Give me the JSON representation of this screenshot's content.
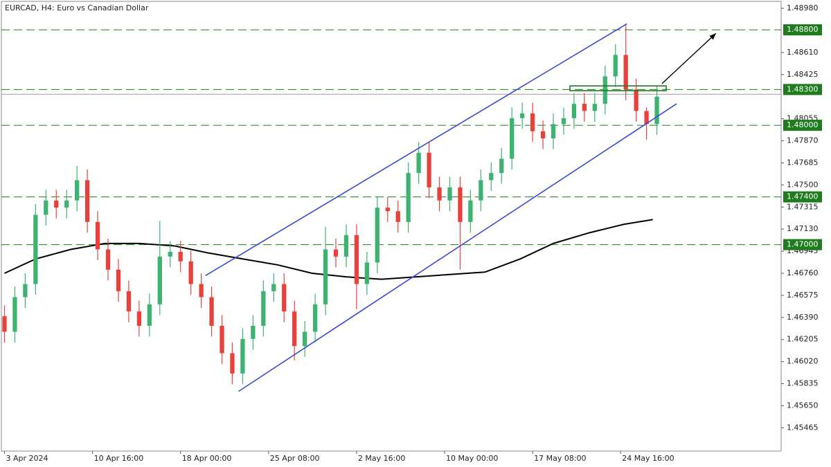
{
  "chart_data": {
    "type": "candlestick",
    "title": "EURCAD, H4:  Euro vs Canadian Dollar",
    "xlim": [
      -0.3,
      75
    ],
    "xticks": [
      {
        "value": 0,
        "label": "3 Apr 2024"
      },
      {
        "value": 8.5,
        "label": "10 Apr 16:00"
      },
      {
        "value": 17,
        "label": "18 Apr 00:00"
      },
      {
        "value": 25.5,
        "label": "25 Apr 08:00"
      },
      {
        "value": 34,
        "label": "2 May 16:00"
      },
      {
        "value": 42.5,
        "label": "10 May 00:00"
      },
      {
        "value": 51,
        "label": "17 May 08:00"
      },
      {
        "value": 59.5,
        "label": "24 May 16:00"
      }
    ],
    "ylim": [
      1.4527,
      1.4905
    ],
    "yticks": [
      {
        "value": 1.4898,
        "label": "1.48980"
      },
      {
        "value": 1.4861,
        "label": "1.48610"
      },
      {
        "value": 1.48425,
        "label": "1.48425"
      },
      {
        "value": 1.48055,
        "label": "1.48055"
      },
      {
        "value": 1.4787,
        "label": "1.47870"
      },
      {
        "value": 1.47685,
        "label": "1.47685"
      },
      {
        "value": 1.475,
        "label": "1.47500"
      },
      {
        "value": 1.47315,
        "label": "1.47315"
      },
      {
        "value": 1.4713,
        "label": "1.47130"
      },
      {
        "value": 1.46945,
        "label": "1.46945"
      },
      {
        "value": 1.4676,
        "label": "1.46760"
      },
      {
        "value": 1.46575,
        "label": "1.46575"
      },
      {
        "value": 1.4639,
        "label": "1.46390"
      },
      {
        "value": 1.46205,
        "label": "1.46205"
      },
      {
        "value": 1.4602,
        "label": "1.46020"
      },
      {
        "value": 1.45835,
        "label": "1.45835"
      },
      {
        "value": 1.4565,
        "label": "1.45650"
      },
      {
        "value": 1.45465,
        "label": "1.45465"
      }
    ],
    "up_color": "#3cb371",
    "down_color": "#e8413c",
    "open": [
      1.464,
      1.4627,
      1.4656,
      1.4667,
      1.4725,
      1.4737,
      1.4731,
      1.4737,
      1.4754,
      1.4719,
      1.4696,
      1.4679,
      1.4661,
      1.4644,
      1.4632,
      1.465,
      1.469,
      1.4694,
      1.4686,
      1.4667,
      1.4656,
      1.4632,
      1.4609,
      1.4592,
      1.4621,
      1.4632,
      1.4661,
      1.4667,
      1.4644,
      1.4615,
      1.4627,
      1.465,
      1.4696,
      1.469,
      1.4708,
      1.4667,
      1.4685,
      1.4731,
      1.4728,
      1.4719,
      1.476,
      1.4777,
      1.4748,
      1.4737,
      1.4748,
      1.4719,
      1.4737,
      1.4754,
      1.476,
      1.4772,
      1.4806,
      1.481,
      1.4795,
      1.4789,
      1.4801,
      1.4806,
      1.4818,
      1.4812,
      1.4818,
      1.4841,
      1.4859,
      1.483,
      1.4812,
      1.4801
    ],
    "high": [
      1.4649,
      1.4665,
      1.4676,
      1.4734,
      1.4746,
      1.4746,
      1.4746,
      1.4766,
      1.4763,
      1.4728,
      1.4705,
      1.4688,
      1.467,
      1.4653,
      1.4659,
      1.472,
      1.4703,
      1.4703,
      1.4695,
      1.4676,
      1.4665,
      1.4641,
      1.4618,
      1.463,
      1.4641,
      1.467,
      1.4676,
      1.4676,
      1.4653,
      1.4636,
      1.4659,
      1.4715,
      1.4705,
      1.4717,
      1.4717,
      1.4694,
      1.474,
      1.474,
      1.4737,
      1.4769,
      1.4786,
      1.4786,
      1.4757,
      1.4757,
      1.4757,
      1.4746,
      1.4763,
      1.4769,
      1.4781,
      1.4815,
      1.4819,
      1.4819,
      1.4804,
      1.481,
      1.4815,
      1.4827,
      1.4827,
      1.4827,
      1.485,
      1.4868,
      1.4884,
      1.4839,
      1.4815,
      1.4833
    ],
    "low": [
      1.4618,
      1.4618,
      1.4647,
      1.4658,
      1.4716,
      1.4722,
      1.4722,
      1.4728,
      1.471,
      1.4687,
      1.467,
      1.4652,
      1.4635,
      1.4623,
      1.4623,
      1.4641,
      1.4681,
      1.4677,
      1.4658,
      1.4647,
      1.4623,
      1.46,
      1.4583,
      1.4583,
      1.4612,
      1.4623,
      1.4652,
      1.4635,
      1.4603,
      1.4606,
      1.4618,
      1.4641,
      1.4681,
      1.4681,
      1.4646,
      1.4658,
      1.4676,
      1.4719,
      1.471,
      1.471,
      1.4751,
      1.4739,
      1.4728,
      1.4728,
      1.4679,
      1.471,
      1.4728,
      1.4745,
      1.4751,
      1.4763,
      1.4797,
      1.4786,
      1.478,
      1.478,
      1.4792,
      1.4797,
      1.4803,
      1.4803,
      1.4809,
      1.4832,
      1.4821,
      1.4803,
      1.4788,
      1.4792
    ],
    "close": [
      1.4627,
      1.4656,
      1.4667,
      1.4725,
      1.4737,
      1.4731,
      1.4737,
      1.4754,
      1.4719,
      1.4696,
      1.4679,
      1.4661,
      1.4644,
      1.4632,
      1.465,
      1.469,
      1.4694,
      1.4686,
      1.4667,
      1.4656,
      1.4632,
      1.4609,
      1.4592,
      1.4621,
      1.4632,
      1.4661,
      1.4667,
      1.4644,
      1.4615,
      1.4627,
      1.465,
      1.4696,
      1.469,
      1.4708,
      1.4667,
      1.4685,
      1.4731,
      1.4728,
      1.4719,
      1.476,
      1.4777,
      1.4748,
      1.4737,
      1.4748,
      1.4719,
      1.4737,
      1.4754,
      1.476,
      1.4772,
      1.4806,
      1.481,
      1.4795,
      1.4789,
      1.4801,
      1.4806,
      1.4818,
      1.4812,
      1.4818,
      1.4841,
      1.4859,
      1.483,
      1.4812,
      1.4801,
      1.4824
    ],
    "moving_average": {
      "color": "#000000",
      "x": [
        0,
        3,
        6.4,
        9.7,
        13,
        16.4,
        19.7,
        23,
        26.4,
        29.7,
        33,
        36.4,
        39.8,
        43,
        46.4,
        49.8,
        53,
        56.5,
        59.8,
        62.6
      ],
      "values": [
        1.4676,
        1.4688,
        1.4696,
        1.4701,
        1.4701,
        1.4699,
        1.4693,
        1.4688,
        1.4683,
        1.4676,
        1.4673,
        1.4671,
        1.4673,
        1.4675,
        1.4677,
        1.4688,
        1.4701,
        1.471,
        1.4717,
        1.4721
      ]
    },
    "levels_color": "#1e7b1e",
    "levels": [
      {
        "value": 1.488,
        "label": "1.48800"
      },
      {
        "value": 1.483,
        "label": "1.48300"
      },
      {
        "value": 1.48,
        "label": "1.48000"
      },
      {
        "value": 1.474,
        "label": "1.47400"
      },
      {
        "value": 1.47,
        "label": "1.47000"
      }
    ],
    "price_line": 1.4826,
    "channel_color": "#3a48d8",
    "channel": [
      {
        "x": [
          19.4,
          60.1
        ],
        "y": [
          1.4674,
          1.4885
        ]
      },
      {
        "x": [
          22.6,
          64.9
        ],
        "y": [
          1.4577,
          1.4818
        ]
      }
    ],
    "arrow": {
      "x": [
        63.5,
        68.7
      ],
      "y": [
        1.4835,
        1.4877
      ]
    },
    "zone": {
      "x": [
        54.6,
        63.9
      ],
      "y": [
        1.4829,
        1.4833
      ]
    }
  }
}
